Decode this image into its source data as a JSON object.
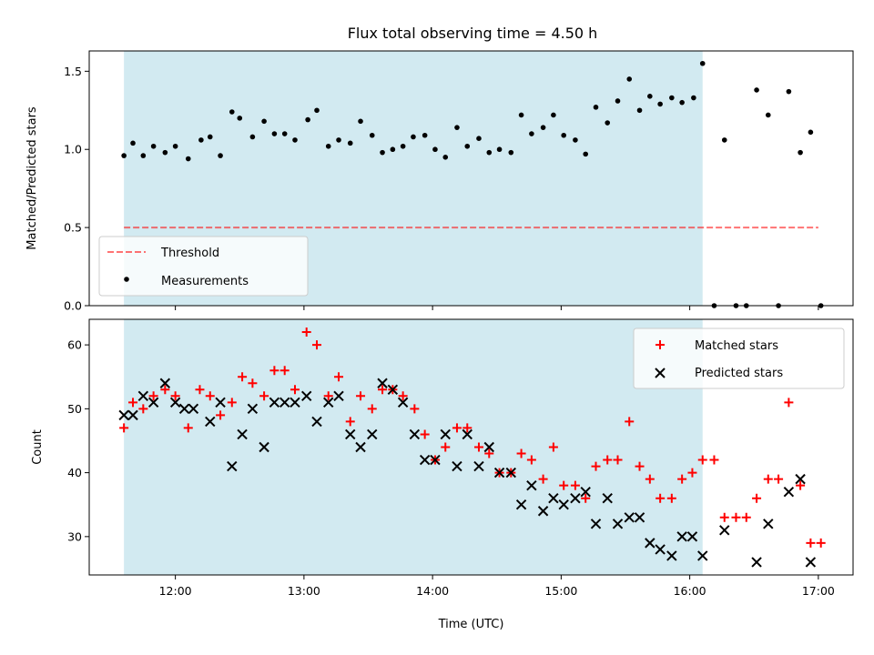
{
  "figure_title": "Flux total observing time = 4.50 h",
  "colors": {
    "shade": "#add8e6",
    "threshold": "#ff0000",
    "matched": "#ff0000",
    "predicted": "#000000",
    "measurement": "#000000"
  },
  "chart_data": [
    {
      "type": "scatter",
      "name": "ratio",
      "ylabel": "Matched/Predicted stars",
      "xlim": [
        11.33,
        17.27
      ],
      "ylim": [
        0.0,
        1.63
      ],
      "yticks": [
        0.0,
        0.5,
        1.0,
        1.5
      ],
      "ytick_labels": [
        "0.0",
        "0.5",
        "1.0",
        "1.5"
      ],
      "shaded_span": [
        11.6,
        16.1
      ],
      "threshold": {
        "label": "Threshold",
        "value": 0.5,
        "x_range": [
          11.6,
          17.0
        ]
      },
      "legend": {
        "placement": "lower-left",
        "entries": [
          "Threshold",
          "Measurements"
        ]
      },
      "series": [
        {
          "name": "Measurements",
          "x": [
            11.6,
            11.67,
            11.75,
            11.83,
            11.92,
            12.0,
            12.1,
            12.2,
            12.27,
            12.35,
            12.44,
            12.5,
            12.6,
            12.69,
            12.77,
            12.85,
            12.93,
            13.03,
            13.1,
            13.19,
            13.27,
            13.36,
            13.44,
            13.53,
            13.61,
            13.69,
            13.77,
            13.85,
            13.94,
            14.02,
            14.1,
            14.19,
            14.27,
            14.36,
            14.44,
            14.52,
            14.61,
            14.69,
            14.77,
            14.86,
            14.94,
            15.02,
            15.11,
            15.19,
            15.27,
            15.36,
            15.44,
            15.53,
            15.61,
            15.69,
            15.77,
            15.86,
            15.94,
            16.03,
            16.1,
            16.19,
            16.27,
            16.36,
            16.44,
            16.52,
            16.61,
            16.69,
            16.77,
            16.86,
            16.94,
            17.02
          ],
          "y": [
            0.96,
            1.04,
            0.96,
            1.02,
            0.98,
            1.02,
            0.94,
            1.06,
            1.08,
            0.96,
            1.24,
            1.2,
            1.08,
            1.18,
            1.1,
            1.1,
            1.06,
            1.19,
            1.25,
            1.02,
            1.06,
            1.04,
            1.18,
            1.09,
            0.98,
            1.0,
            1.02,
            1.08,
            1.09,
            1.0,
            0.95,
            1.14,
            1.02,
            1.07,
            0.98,
            1.0,
            0.98,
            1.22,
            1.1,
            1.14,
            1.22,
            1.09,
            1.06,
            0.97,
            1.27,
            1.17,
            1.31,
            1.45,
            1.25,
            1.34,
            1.29,
            1.33,
            1.3,
            1.33,
            1.55,
            0.0,
            1.06,
            0.0,
            0.0,
            1.38,
            1.22,
            0.0,
            1.37,
            0.98,
            1.11,
            0.0
          ]
        }
      ]
    },
    {
      "type": "scatter",
      "name": "counts",
      "xlabel": "Time (UTC)",
      "ylabel": "Count",
      "xlim": [
        11.33,
        17.27
      ],
      "ylim": [
        24,
        64
      ],
      "xticks": [
        12,
        13,
        14,
        15,
        16,
        17
      ],
      "xtick_labels": [
        "12:00",
        "13:00",
        "14:00",
        "15:00",
        "16:00",
        "17:00"
      ],
      "yticks": [
        30,
        40,
        50,
        60
      ],
      "ytick_labels": [
        "30",
        "40",
        "50",
        "60"
      ],
      "shaded_span": [
        11.6,
        16.1
      ],
      "legend": {
        "placement": "top-right",
        "entries": [
          "Matched stars",
          "Predicted stars"
        ]
      },
      "series": [
        {
          "name": "Matched stars",
          "marker": "+",
          "x": [
            11.6,
            11.67,
            11.75,
            11.83,
            11.92,
            12.0,
            12.1,
            12.19,
            12.27,
            12.35,
            12.44,
            12.52,
            12.6,
            12.69,
            12.77,
            12.85,
            12.93,
            13.02,
            13.1,
            13.19,
            13.27,
            13.36,
            13.44,
            13.53,
            13.61,
            13.69,
            13.77,
            13.86,
            13.94,
            14.02,
            14.1,
            14.19,
            14.27,
            14.36,
            14.44,
            14.52,
            14.61,
            14.69,
            14.77,
            14.86,
            14.94,
            15.02,
            15.11,
            15.19,
            15.27,
            15.36,
            15.44,
            15.53,
            15.61,
            15.69,
            15.77,
            15.86,
            15.94,
            16.02,
            16.1,
            16.19,
            16.27,
            16.36,
            16.44,
            16.52,
            16.61,
            16.69,
            16.77,
            16.86,
            16.94,
            17.02
          ],
          "y": [
            47,
            51,
            50,
            52,
            53,
            52,
            47,
            53,
            52,
            49,
            51,
            55,
            54,
            52,
            56,
            56,
            53,
            62,
            60,
            52,
            55,
            48,
            52,
            50,
            53,
            53,
            52,
            50,
            46,
            42,
            44,
            47,
            47,
            44,
            43,
            40,
            40,
            43,
            42,
            39,
            44,
            38,
            38,
            36,
            41,
            42,
            42,
            48,
            41,
            39,
            36,
            36,
            39,
            40,
            42,
            42,
            33,
            33,
            33,
            36,
            39,
            39,
            51,
            38,
            29,
            29
          ]
        },
        {
          "name": "Predicted stars",
          "marker": "x",
          "x": [
            11.6,
            11.67,
            11.75,
            11.83,
            11.92,
            12.0,
            12.07,
            12.14,
            12.27,
            12.35,
            12.44,
            12.52,
            12.6,
            12.69,
            12.77,
            12.85,
            12.93,
            13.02,
            13.1,
            13.19,
            13.27,
            13.36,
            13.44,
            13.53,
            13.61,
            13.69,
            13.77,
            13.86,
            13.94,
            14.02,
            14.1,
            14.19,
            14.27,
            14.36,
            14.44,
            14.52,
            14.61,
            14.69,
            14.77,
            14.86,
            14.94,
            15.02,
            15.11,
            15.19,
            15.27,
            15.36,
            15.44,
            15.53,
            15.61,
            15.69,
            15.77,
            15.86,
            15.94,
            16.02,
            16.1,
            16.27,
            16.52,
            16.61,
            16.77,
            16.86,
            16.94
          ],
          "y": [
            49,
            49,
            52,
            51,
            54,
            51,
            50,
            50,
            48,
            51,
            41,
            46,
            50,
            44,
            51,
            51,
            51,
            52,
            48,
            51,
            52,
            46,
            44,
            46,
            54,
            53,
            51,
            46,
            42,
            42,
            46,
            41,
            46,
            41,
            44,
            40,
            40,
            35,
            38,
            34,
            36,
            35,
            36,
            37,
            32,
            36,
            32,
            33,
            33,
            29,
            28,
            27,
            30,
            30,
            27,
            31,
            26,
            32,
            37,
            39,
            26
          ]
        }
      ]
    }
  ]
}
